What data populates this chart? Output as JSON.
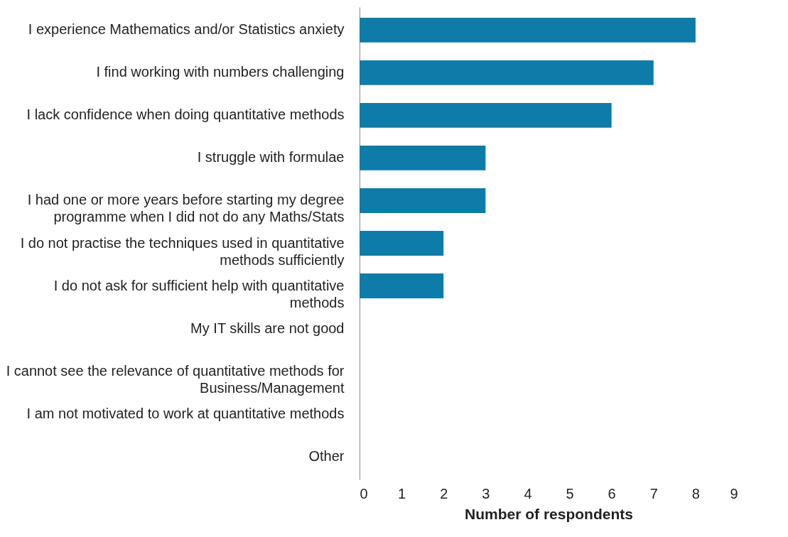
{
  "chart_data": {
    "type": "bar",
    "orientation": "horizontal",
    "xlabel": "Number of respondents",
    "categories": [
      "I experience Mathematics and/or Statistics anxiety",
      "I find working with numbers challenging",
      "I lack confidence when doing quantitative methods",
      "I struggle with formulae",
      "I had one or more years before starting my degree programme when I did not do any Maths/Stats",
      "I do not practise the techniques used in quantitative methods sufficiently",
      "I do not ask for sufficient help with quantitative methods",
      "My IT skills are not good",
      "I cannot see the relevance of quantitative methods for Business/Management",
      "I am not motivated to work at quantitative methods",
      "Other"
    ],
    "values": [
      8,
      7,
      6,
      3,
      3,
      2,
      2,
      0,
      0,
      0,
      0
    ],
    "color": "#0e7ca8",
    "xlim": [
      0,
      9
    ],
    "xticks": [
      0,
      1,
      2,
      3,
      4,
      5,
      6,
      7,
      8,
      9
    ],
    "grid": false
  }
}
